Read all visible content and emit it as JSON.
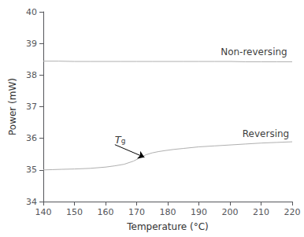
{
  "chart_data": {
    "type": "line",
    "xlabel": "Temperature (°C)",
    "ylabel": "Power (mW)",
    "xlim": [
      140,
      220
    ],
    "ylim": [
      34,
      40
    ],
    "xticks": [
      140,
      150,
      160,
      170,
      180,
      190,
      200,
      210,
      220
    ],
    "yticks": [
      34,
      35,
      36,
      37,
      38,
      39,
      40
    ],
    "grid": false,
    "series": [
      {
        "color": "#b0b0b0",
        "x": [
          140,
          145,
          150,
          155,
          160,
          165,
          170,
          175,
          180,
          185,
          190,
          195,
          200,
          205,
          210,
          215,
          220
        ],
        "values": [
          38.44,
          38.44,
          38.43,
          38.43,
          38.43,
          38.43,
          38.43,
          38.43,
          38.43,
          38.43,
          38.43,
          38.43,
          38.43,
          38.42,
          38.42,
          38.42,
          38.42
        ]
      },
      {
        "color": "#b0b0b0",
        "x": [
          140,
          143,
          146,
          150,
          155,
          160,
          163,
          166,
          169,
          171,
          173,
          175,
          177,
          179,
          182,
          185,
          190,
          195,
          200,
          205,
          210,
          215,
          220
        ],
        "values": [
          35.0,
          35.01,
          35.02,
          35.03,
          35.05,
          35.09,
          35.13,
          35.18,
          35.28,
          35.38,
          35.48,
          35.54,
          35.58,
          35.61,
          35.65,
          35.68,
          35.73,
          35.76,
          35.79,
          35.82,
          35.85,
          35.87,
          35.89
        ]
      }
    ],
    "annotations": [
      {
        "text": "Non-reversing",
        "x": 197,
        "y": 38.58
      },
      {
        "text": "Reversing",
        "x": 204,
        "y": 35.98
      },
      {
        "text": "Tg",
        "x": 163,
        "y": 35.8,
        "arrow_x": 172.5,
        "arrow_y": 35.4
      }
    ]
  }
}
